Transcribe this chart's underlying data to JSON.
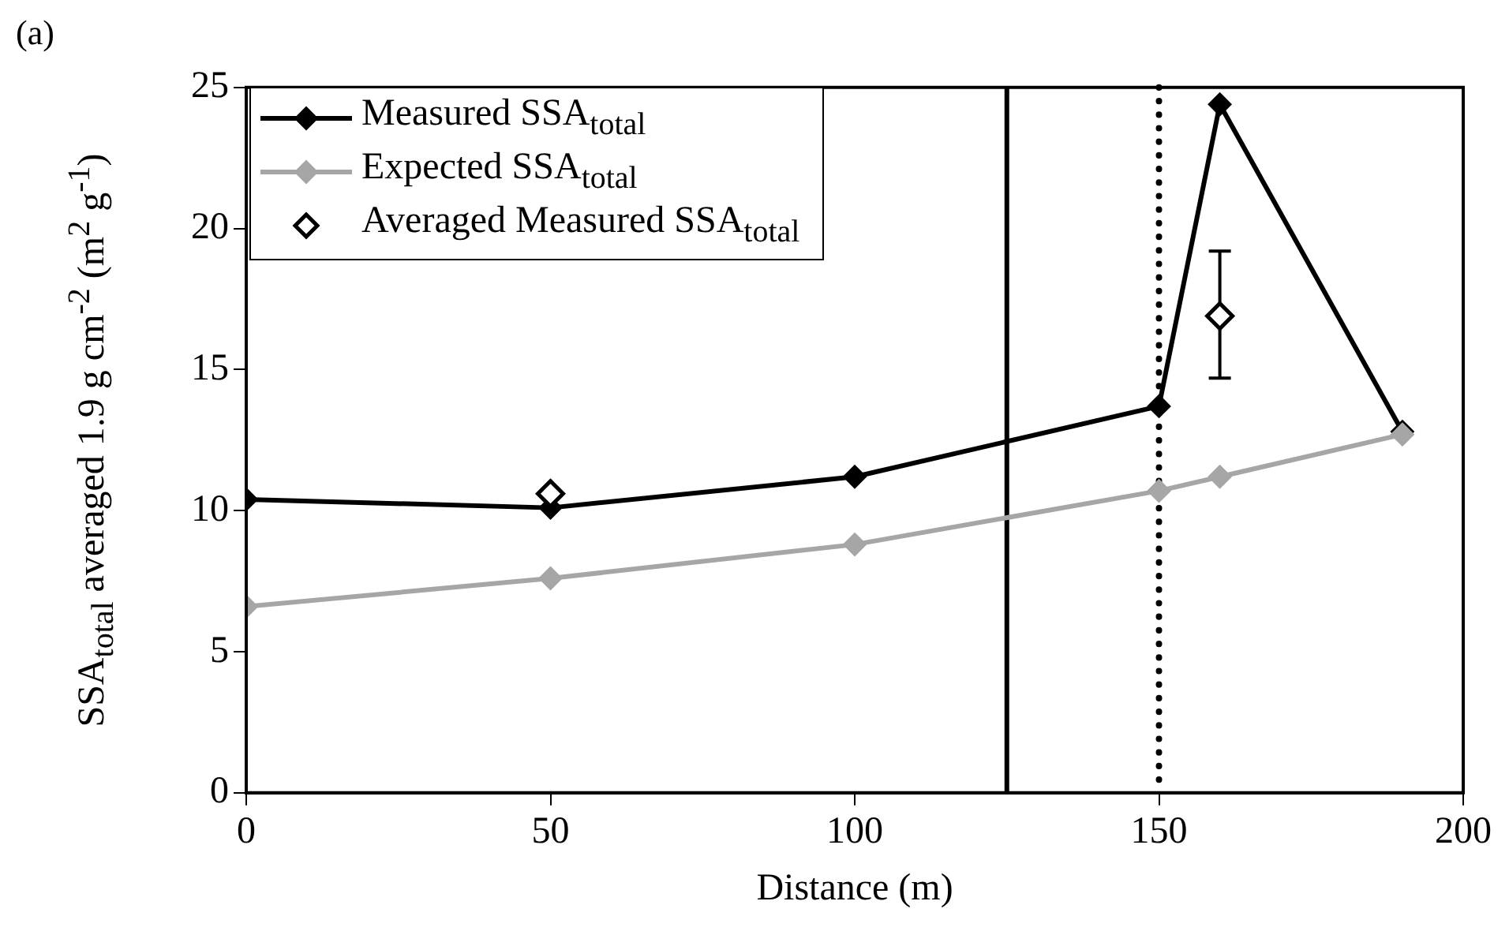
{
  "chart_data": {
    "type": "line",
    "title": "(a)",
    "xlabel": "Distance (m)",
    "ylabel": "SSA$_{total}$ averaged 1.9 g cm$^{-2}$ (m$^{2}$ g$^{-1}$)",
    "series": [
      {
        "name": "Measured SSA$_{total}$",
        "color": "#000000",
        "x": [
          0,
          50,
          100,
          150,
          160,
          190
        ],
        "values": [
          10.4,
          10.1,
          11.2,
          13.7,
          24.4,
          12.8
        ],
        "marker": "diamond"
      },
      {
        "name": "Expected SSA$_{total}$",
        "color": "#a6a6a6",
        "x": [
          0,
          50,
          100,
          150,
          160,
          190
        ],
        "values": [
          6.6,
          7.6,
          8.8,
          10.7,
          11.2,
          12.7
        ],
        "marker": "diamond"
      },
      {
        "name": "Averaged Measured SSA$_{total}$",
        "type": "scatter",
        "color": "#000000",
        "x": [
          50,
          160
        ],
        "values": [
          10.6,
          16.9
        ],
        "errors": [
          null,
          [
            14.7,
            19.2
          ]
        ],
        "marker": "diamond"
      }
    ],
    "xlim": [
      0,
      200
    ],
    "xticks": [
      0,
      50,
      100,
      150,
      200
    ],
    "ylim": [
      0,
      25
    ],
    "yticks": [
      0,
      5,
      10,
      15,
      20,
      25
    ],
    "ref_lines": [
      {
        "axis": "x",
        "value": 125,
        "line_style": "solid"
      },
      {
        "axis": "x",
        "value": 150,
        "line_style": "dotted"
      }
    ],
    "grid": false,
    "legend": "top left"
  }
}
